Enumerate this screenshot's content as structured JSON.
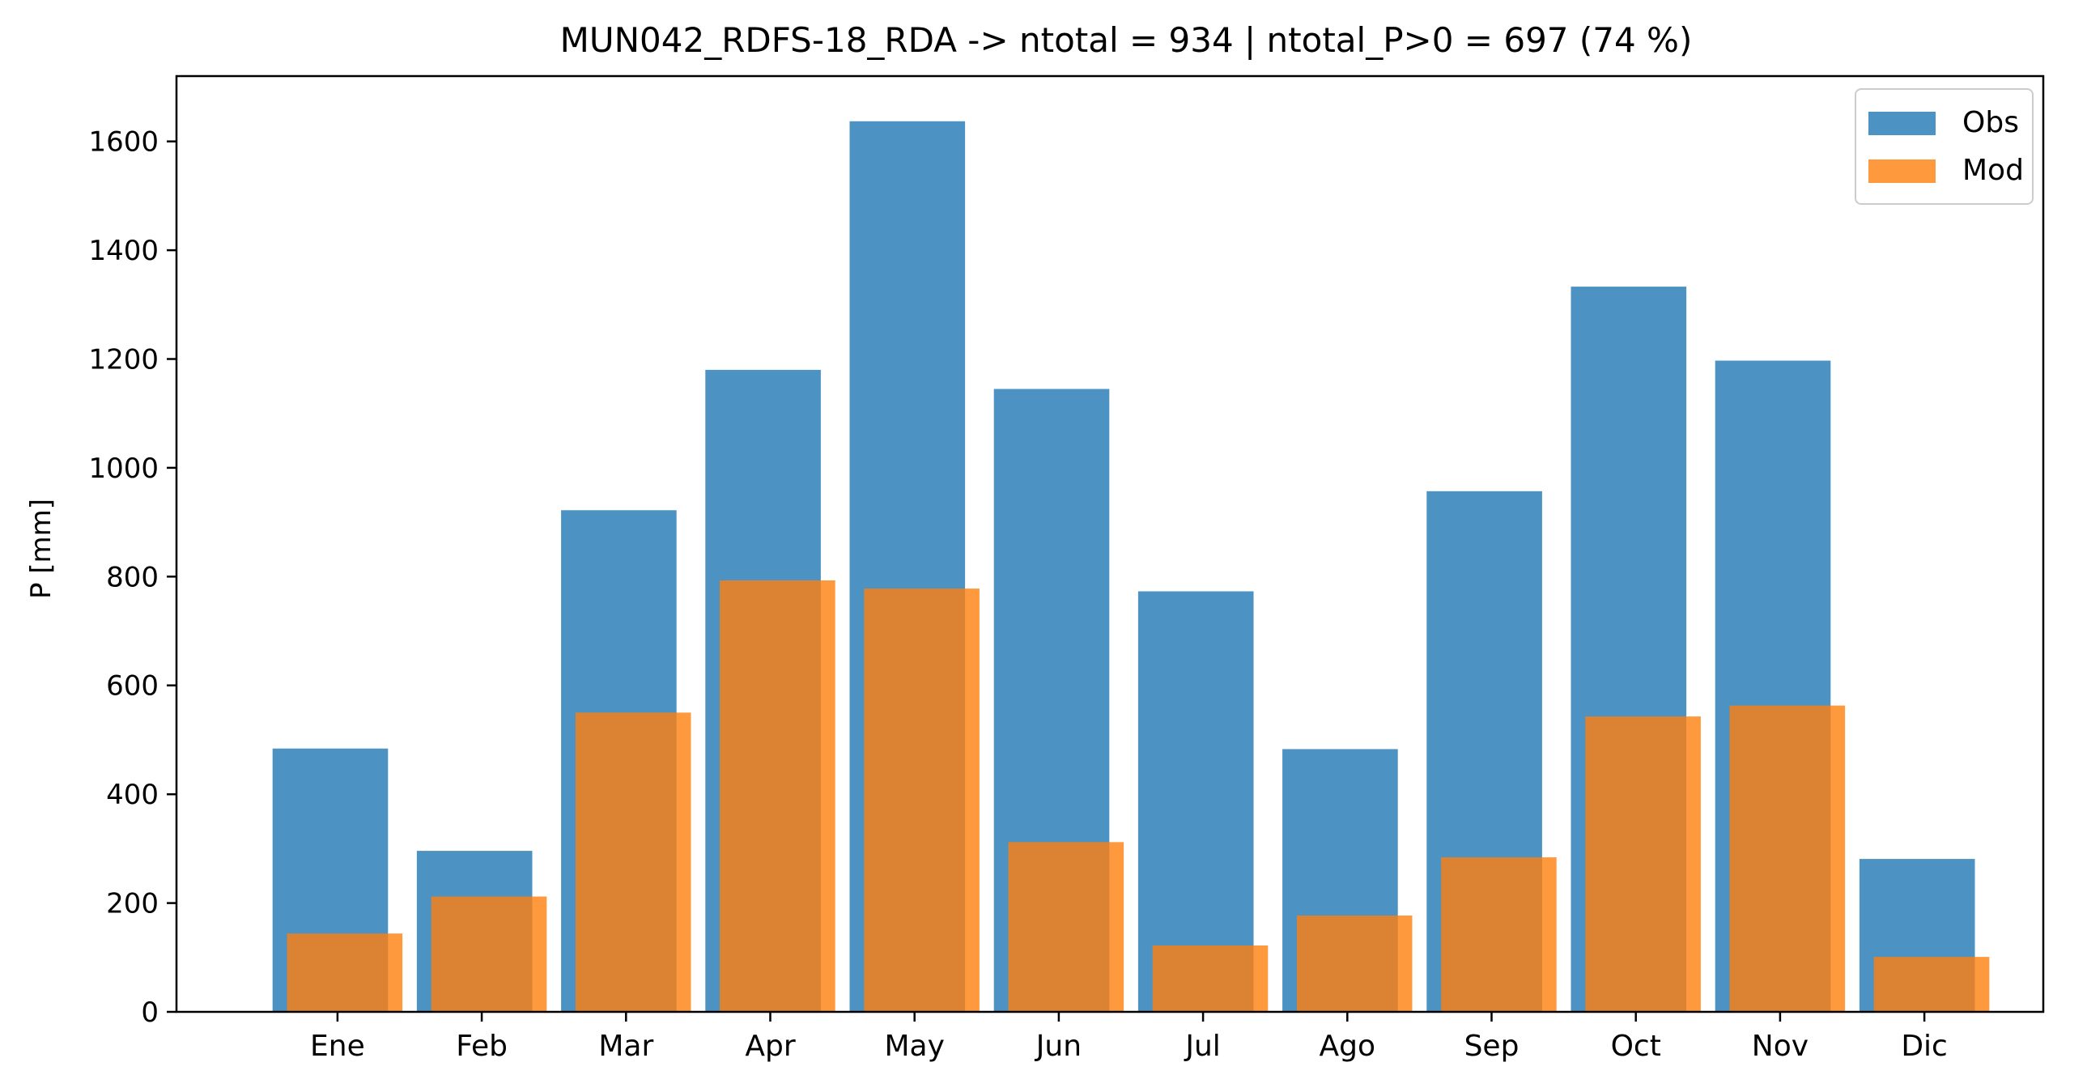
{
  "chart_data": {
    "type": "bar",
    "title": "MUN042_RDFS-18_RDA -> ntotal = 934 | ntotal_P>0 = 697 (74 %)",
    "xlabel": "",
    "ylabel": "P [mm]",
    "categories": [
      "Ene",
      "Feb",
      "Mar",
      "Apr",
      "May",
      "Jun",
      "Jul",
      "Ago",
      "Sep",
      "Oct",
      "Nov",
      "Dic"
    ],
    "series": [
      {
        "name": "Obs",
        "color": "#1f77b4",
        "values": [
          484,
          296,
          922,
          1180,
          1637,
          1145,
          773,
          483,
          957,
          1333,
          1197,
          281
        ]
      },
      {
        "name": "Mod",
        "color": "#ff7f0e",
        "values": [
          144,
          212,
          550,
          793,
          778,
          312,
          122,
          177,
          284,
          543,
          563,
          101
        ]
      }
    ],
    "ylim": [
      0,
      1720
    ],
    "yticks": [
      0,
      200,
      400,
      600,
      800,
      1000,
      1200,
      1400,
      1600
    ],
    "legend_position": "top-right",
    "grid": false
  }
}
